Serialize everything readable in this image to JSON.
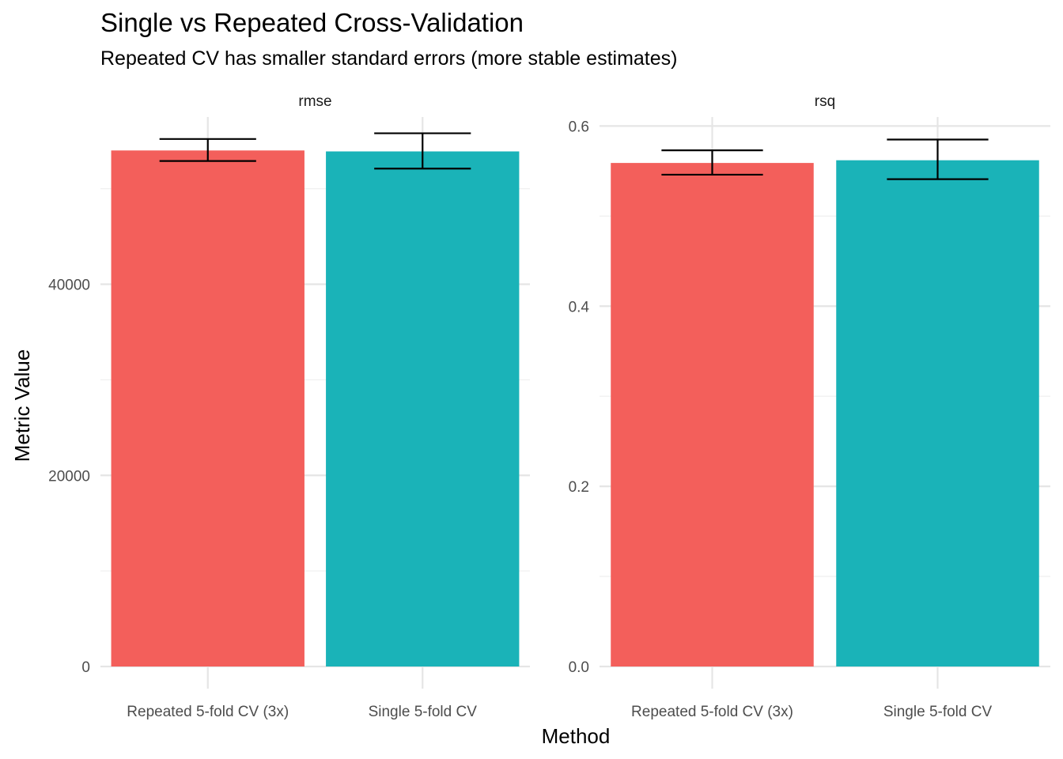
{
  "title": "Single vs Repeated Cross-Validation",
  "subtitle": "Repeated CV has smaller standard errors (more stable estimates)",
  "xlabel": "Method",
  "ylabel": "Metric Value",
  "colors": {
    "Repeated 5-fold CV (3x)": "#F35F5B",
    "Single 5-fold CV": "#1AB3B8"
  },
  "chart_data": [
    {
      "type": "bar",
      "panel": "rmse",
      "categories": [
        "Repeated 5-fold CV (3x)",
        "Single 5-fold CV"
      ],
      "values": [
        54000,
        53900
      ],
      "error_low": [
        52900,
        52100
      ],
      "error_high": [
        55200,
        55800
      ],
      "ylim": [
        0,
        57500
      ],
      "yticks": [
        0,
        20000,
        40000
      ],
      "ytick_labels": [
        "0",
        "20000",
        "40000"
      ],
      "grid": true
    },
    {
      "type": "bar",
      "panel": "rsq",
      "categories": [
        "Repeated 5-fold CV (3x)",
        "Single 5-fold CV"
      ],
      "values": [
        0.559,
        0.562
      ],
      "error_low": [
        0.546,
        0.541
      ],
      "error_high": [
        0.573,
        0.585
      ],
      "ylim": [
        0,
        0.61
      ],
      "yticks": [
        0.0,
        0.2,
        0.4,
        0.6
      ],
      "ytick_labels": [
        "0.0",
        "0.2",
        "0.4",
        "0.6"
      ],
      "grid": true
    }
  ]
}
